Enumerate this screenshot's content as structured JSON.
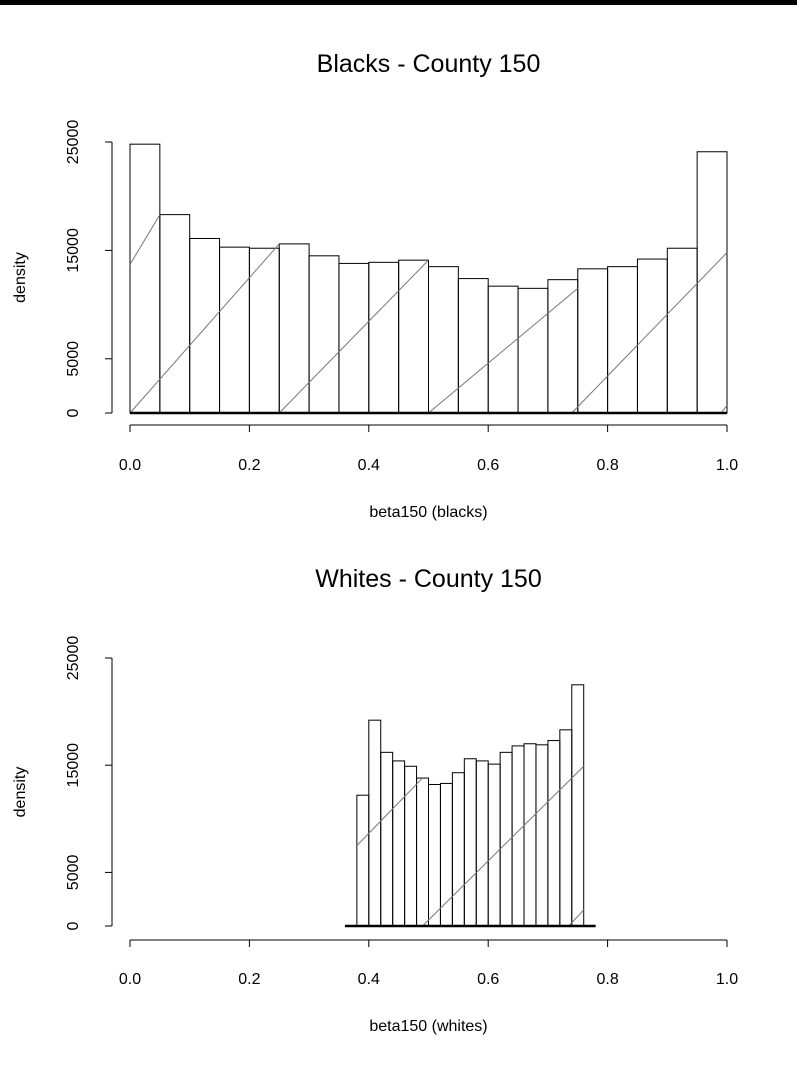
{
  "chart_data": [
    {
      "type": "bar",
      "title": "Blacks - County 150",
      "xlabel": "beta150 (blacks)",
      "ylabel": "density",
      "xlim": [
        0.0,
        1.0
      ],
      "ylim": [
        0,
        25000
      ],
      "xticks": [
        "0.0",
        "0.2",
        "0.4",
        "0.6",
        "0.8",
        "1.0"
      ],
      "yticks": [
        "0",
        "5000",
        "15000",
        "25000"
      ],
      "bin_edges": [
        0.0,
        0.05,
        0.1,
        0.15,
        0.2,
        0.25,
        0.3,
        0.35,
        0.4,
        0.45,
        0.5,
        0.55,
        0.6,
        0.65,
        0.7,
        0.75,
        0.8,
        0.85,
        0.9,
        0.95,
        1.0
      ],
      "values": [
        24800,
        18300,
        16100,
        15300,
        15200,
        15600,
        14500,
        13800,
        13900,
        14100,
        13500,
        12400,
        11700,
        11500,
        12300,
        13300,
        13500,
        14200,
        15200,
        24100
      ],
      "density_line": [
        {
          "x0": 0.0,
          "y0": 13700,
          "x1": 0.05,
          "y1": 18300
        },
        {
          "x0": 0.0,
          "y0": 0,
          "x1": 0.25,
          "y1": 15600
        },
        {
          "x0": 0.25,
          "y0": 0,
          "x1": 0.5,
          "y1": 14100
        },
        {
          "x0": 0.5,
          "y0": 0,
          "x1": 0.75,
          "y1": 11500
        },
        {
          "x0": 0.74,
          "y0": 0,
          "x1": 1.0,
          "y1": 14800
        },
        {
          "x0": 0.99,
          "y0": 0,
          "x1": 1.0,
          "y1": 700
        }
      ]
    },
    {
      "type": "bar",
      "title": "Whites - County 150",
      "xlabel": "beta150 (whites)",
      "ylabel": "density",
      "xlim": [
        0.0,
        1.0
      ],
      "ylim": [
        0,
        25000
      ],
      "xticks": [
        "0.0",
        "0.2",
        "0.4",
        "0.6",
        "0.8",
        "1.0"
      ],
      "yticks": [
        "0",
        "5000",
        "15000",
        "25000"
      ],
      "baseline_range": [
        0.36,
        0.78
      ],
      "bin_edges": [
        0.38,
        0.4,
        0.42,
        0.44,
        0.46,
        0.48,
        0.5,
        0.52,
        0.54,
        0.56,
        0.58,
        0.6,
        0.62,
        0.64,
        0.66,
        0.68,
        0.7,
        0.72,
        0.74,
        0.76
      ],
      "values": [
        12200,
        19200,
        16200,
        15400,
        14900,
        13800,
        13200,
        13300,
        14300,
        15600,
        15400,
        15100,
        16200,
        16800,
        17000,
        16900,
        17300,
        18300,
        22500
      ],
      "density_line": [
        {
          "x0": 0.38,
          "y0": 7500,
          "x1": 0.49,
          "y1": 13800
        },
        {
          "x0": 0.49,
          "y0": 0,
          "x1": 0.76,
          "y1": 14900
        },
        {
          "x0": 0.735,
          "y0": 0,
          "x1": 0.76,
          "y1": 1500
        }
      ]
    }
  ]
}
